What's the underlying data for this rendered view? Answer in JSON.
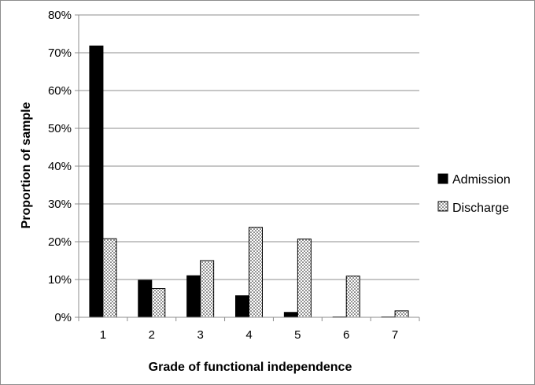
{
  "chart_data": {
    "type": "bar",
    "title": "",
    "xlabel": "Grade of functional independence",
    "ylabel": "Proportion of sample",
    "categories": [
      "1",
      "2",
      "3",
      "4",
      "5",
      "6",
      "7"
    ],
    "series": [
      {
        "name": "Admission",
        "values": [
          71.8,
          9.8,
          11.0,
          5.7,
          1.3,
          0.1,
          0.1
        ],
        "color": "#000000",
        "pattern": "solid"
      },
      {
        "name": "Discharge",
        "values": [
          20.8,
          7.6,
          15.0,
          23.8,
          20.7,
          10.9,
          1.7
        ],
        "color": "#ffffff",
        "pattern": "dots"
      }
    ],
    "ylim": [
      0,
      80
    ],
    "yticks": [
      "0%",
      "10%",
      "20%",
      "30%",
      "40%",
      "50%",
      "60%",
      "70%",
      "80%"
    ],
    "grid": true,
    "legend": "right"
  }
}
